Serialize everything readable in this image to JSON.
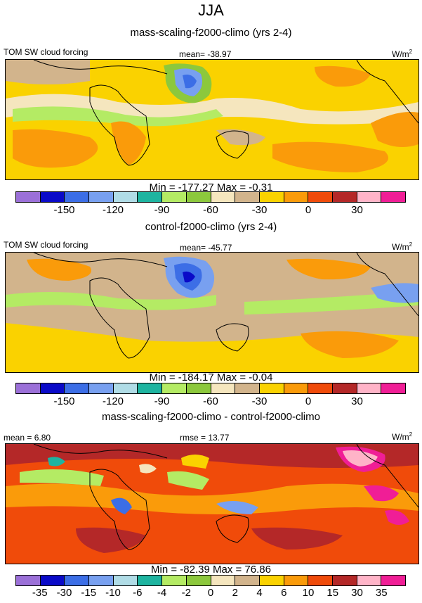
{
  "season": "JJA",
  "panels": [
    {
      "title": "mass-scaling-f2000-climo (yrs 2-4)",
      "left_label": "TOM SW cloud forcing",
      "center_label": "mean= -38.97",
      "units": "W/m",
      "units_exp": "2",
      "stats": "Min = -177.27 Max =  -0.31",
      "ticks": [
        "-150",
        "-120",
        "-90",
        "-60",
        "-30",
        "0",
        "30"
      ]
    },
    {
      "title": "control-f2000-climo (yrs 2-4)",
      "left_label": "TOM SW cloud forcing",
      "center_label": "mean= -45.77",
      "units": "W/m",
      "units_exp": "2",
      "stats": "Min = -184.17 Max =  -0.04",
      "ticks": [
        "-150",
        "-120",
        "-90",
        "-60",
        "-30",
        "0",
        "30"
      ]
    },
    {
      "title": "mass-scaling-f2000-climo - control-f2000-climo",
      "left_label": "mean =   6.80",
      "center_label": "rmse = 13.77",
      "units": "W/m",
      "units_exp": "2",
      "stats": "Min = -82.39 Max =  76.86",
      "ticks": [
        "-35",
        "-30",
        "-15",
        "-10",
        "-6",
        "-4",
        "-2",
        "0",
        "2",
        "4",
        "6",
        "10",
        "15",
        "30",
        "35"
      ]
    }
  ],
  "colorbar": {
    "colors": [
      "#9b70d8",
      "#0a0ac8",
      "#3c6ee6",
      "#78a0f0",
      "#b0dce6",
      "#1eb4a0",
      "#b4eb64",
      "#8cc83c",
      "#f5e6be",
      "#d2b48c",
      "#fad200",
      "#fa9b0a",
      "#f04b0a",
      "#b42828",
      "#ffb4c8",
      "#f01e96"
    ]
  }
}
